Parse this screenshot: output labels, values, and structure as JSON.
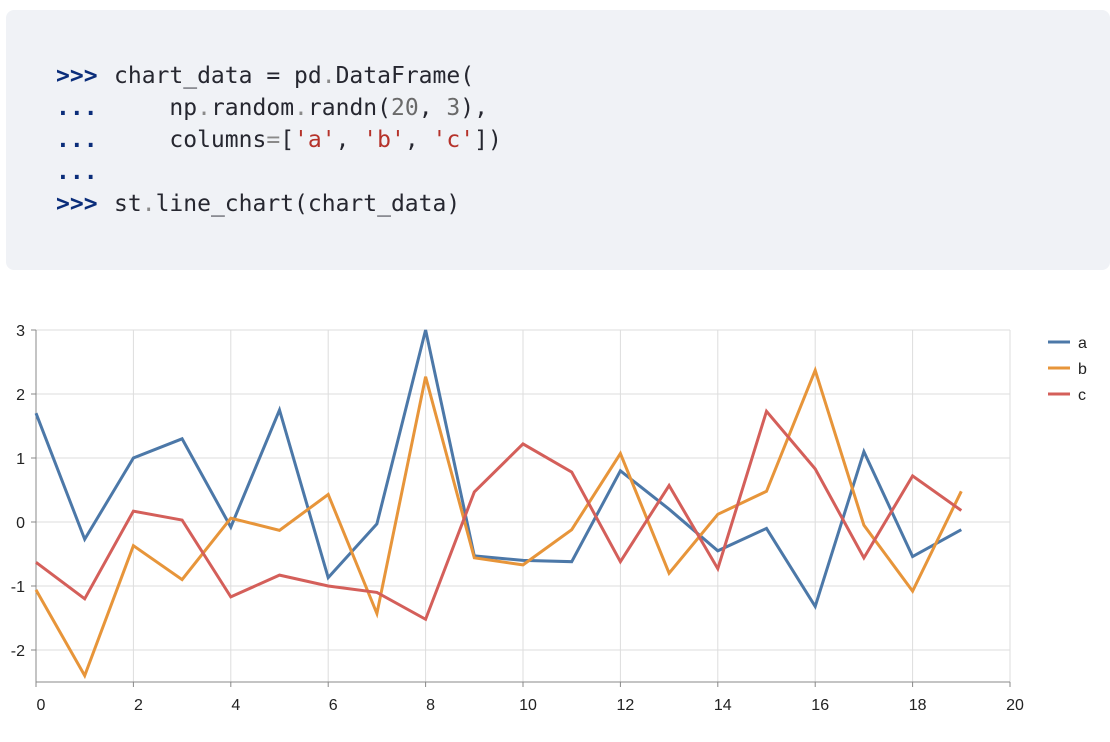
{
  "code": {
    "lines": [
      {
        "prompt": ">>>",
        "parts": [
          {
            "t": "chart_data = pd",
            "c": ""
          },
          {
            "t": ".",
            "c": "dim"
          },
          {
            "t": "DataFrame(",
            "c": ""
          }
        ]
      },
      {
        "prompt": "...",
        "parts": [
          {
            "t": "    np",
            "c": ""
          },
          {
            "t": ".",
            "c": "dim"
          },
          {
            "t": "random",
            "c": ""
          },
          {
            "t": ".",
            "c": "dim"
          },
          {
            "t": "randn(",
            "c": ""
          },
          {
            "t": "20",
            "c": "num"
          },
          {
            "t": ", ",
            "c": ""
          },
          {
            "t": "3",
            "c": "num"
          },
          {
            "t": "),",
            "c": ""
          }
        ]
      },
      {
        "prompt": "...",
        "parts": [
          {
            "t": "    columns",
            "c": ""
          },
          {
            "t": "=",
            "c": "dim"
          },
          {
            "t": "[",
            "c": ""
          },
          {
            "t": "'a'",
            "c": "str"
          },
          {
            "t": ", ",
            "c": ""
          },
          {
            "t": "'b'",
            "c": "str"
          },
          {
            "t": ", ",
            "c": ""
          },
          {
            "t": "'c'",
            "c": "str"
          },
          {
            "t": "])",
            "c": ""
          }
        ]
      },
      {
        "prompt": "...",
        "parts": []
      },
      {
        "prompt": ">>>",
        "parts": [
          {
            "t": "st",
            "c": ""
          },
          {
            "t": ".",
            "c": "dim"
          },
          {
            "t": "line_chart(chart_data)",
            "c": ""
          }
        ]
      }
    ]
  },
  "chart_data": {
    "type": "line",
    "x": [
      0,
      1,
      2,
      3,
      4,
      5,
      6,
      7,
      8,
      9,
      10,
      11,
      12,
      13,
      14,
      15,
      16,
      17,
      18,
      19
    ],
    "xlim": [
      0,
      20
    ],
    "ylim": [
      -2.5,
      3
    ],
    "xticks": [
      0,
      2,
      4,
      6,
      8,
      10,
      12,
      14,
      16,
      18,
      20
    ],
    "yticks": [
      -2,
      -1,
      0,
      1,
      2,
      3
    ],
    "grid": true,
    "legend_position": "right",
    "series": [
      {
        "name": "a",
        "color": "#4c78a8",
        "values": [
          1.7,
          -0.27,
          1.0,
          1.3,
          -0.08,
          1.75,
          -0.87,
          -0.03,
          3.0,
          -0.53,
          -0.6,
          -0.62,
          0.8,
          0.2,
          -0.45,
          -0.1,
          -1.32,
          1.1,
          -0.54,
          -0.12
        ]
      },
      {
        "name": "b",
        "color": "#e7953a",
        "values": [
          -1.06,
          -2.4,
          -0.37,
          -0.9,
          0.06,
          -0.13,
          0.43,
          -1.43,
          2.27,
          -0.56,
          -0.67,
          -0.12,
          1.07,
          -0.8,
          0.12,
          0.48,
          2.37,
          -0.05,
          -1.08,
          0.48
        ]
      },
      {
        "name": "c",
        "color": "#d45f5a",
        "values": [
          -0.63,
          -1.2,
          0.17,
          0.03,
          -1.17,
          -0.83,
          -1.0,
          -1.1,
          -1.52,
          0.47,
          1.22,
          0.78,
          -0.62,
          0.57,
          -0.73,
          1.73,
          0.83,
          -0.56,
          0.72,
          0.18
        ]
      }
    ]
  }
}
